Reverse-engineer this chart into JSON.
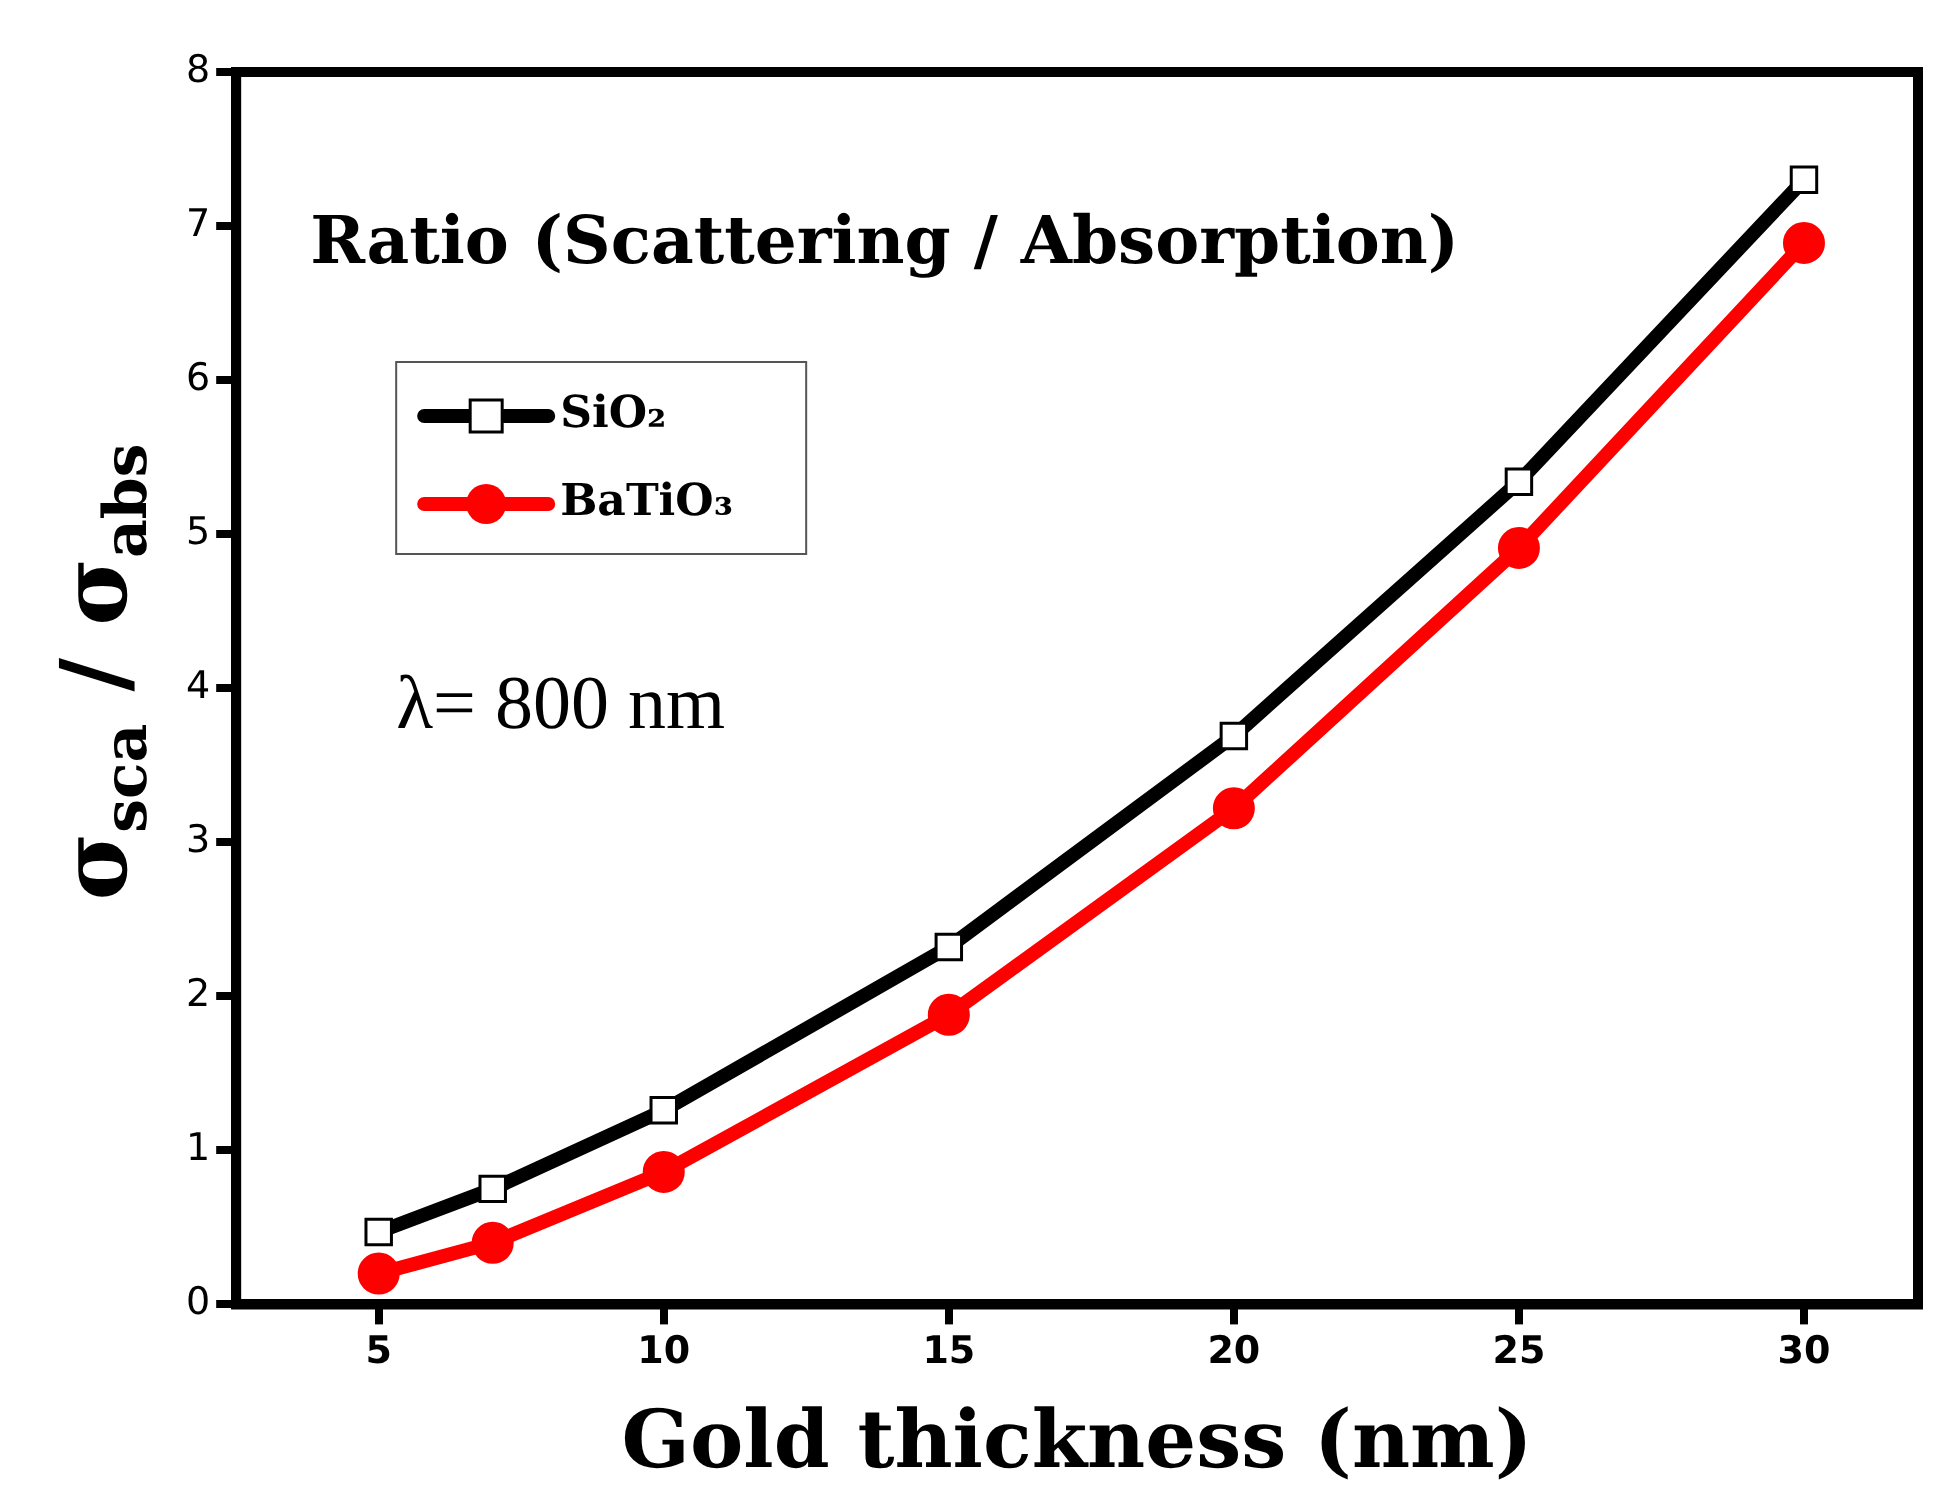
{
  "chart_data": {
    "type": "line",
    "xlabel": "Gold thickness (nm)",
    "ylabel": "σ$_{sca}$ / σ$_{abs}$",
    "x": [
      5,
      7,
      10,
      15,
      20,
      25,
      30
    ],
    "series": [
      {
        "name": "SiO₂",
        "color": "#000000",
        "marker": "square",
        "values": [
          0.47,
          0.75,
          1.26,
          2.32,
          3.69,
          5.34,
          7.3
        ]
      },
      {
        "name": "BaTiO₃",
        "color": "#ff0000",
        "marker": "circle",
        "values": [
          0.2,
          0.4,
          0.86,
          1.88,
          3.22,
          4.91,
          6.89
        ]
      }
    ],
    "xlim": [
      2.5,
      32
    ],
    "xticks": [
      5,
      10,
      15,
      20,
      25,
      30
    ],
    "ylim": [
      0,
      8
    ],
    "yticks": [
      0,
      1,
      2,
      3,
      4,
      5,
      6,
      7,
      8
    ],
    "grid": false,
    "legend": "top left",
    "line_style": "solid",
    "annotations": [
      "Ratio (Scattering / Absorption)",
      "λ= 800 nm"
    ]
  }
}
